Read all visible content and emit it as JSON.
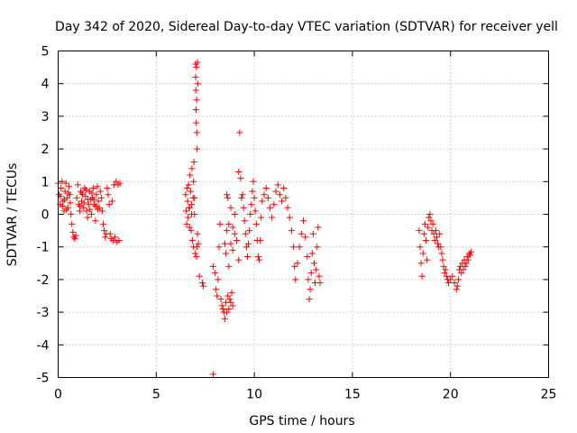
{
  "chart_data": {
    "type": "scatter",
    "title": "Day 342 of 2020, Sidereal Day-to-day VTEC variation (SDTVAR) for receiver yell",
    "xlabel": "GPS time / hours",
    "ylabel": "SDTVAR / TECUs",
    "xlim": [
      0,
      25
    ],
    "ylim": [
      -5,
      5
    ],
    "x_ticks": [
      0,
      5,
      10,
      15,
      20,
      25
    ],
    "x_tick_labels": [
      "0",
      "5",
      "10",
      "15",
      "20",
      "25"
    ],
    "y_ticks": [
      -5,
      -4,
      -3,
      -2,
      -1,
      0,
      1,
      2,
      3,
      4,
      5
    ],
    "y_tick_labels": [
      "-5",
      "-4",
      "-3",
      "-2",
      "-1",
      "0",
      "1",
      "2",
      "3",
      "4",
      "5"
    ],
    "grid": true,
    "marker": "+",
    "marker_color": "#ff0000",
    "series": [
      {
        "name": "SDTVAR",
        "points": [
          [
            0.0,
            0.95
          ],
          [
            0.05,
            0.6
          ],
          [
            0.1,
            0.3
          ],
          [
            0.15,
            0.8
          ],
          [
            0.2,
            1.0
          ],
          [
            0.25,
            0.4
          ],
          [
            0.3,
            0.1
          ],
          [
            0.35,
            0.7
          ],
          [
            0.4,
            0.95
          ],
          [
            0.45,
            0.5
          ],
          [
            0.5,
            0.2
          ],
          [
            0.55,
            0.85
          ],
          [
            0.6,
            0.6
          ],
          [
            0.65,
            0.0
          ],
          [
            0.7,
            -0.3
          ],
          [
            0.75,
            -0.55
          ],
          [
            0.8,
            -0.7
          ],
          [
            0.85,
            -0.75
          ],
          [
            0.9,
            -0.65
          ],
          [
            0.95,
            0.5
          ],
          [
            1.0,
            0.9
          ],
          [
            1.05,
            0.3
          ],
          [
            1.1,
            0.1
          ],
          [
            1.15,
            0.7
          ],
          [
            1.2,
            0.4
          ],
          [
            1.25,
            0.6
          ],
          [
            1.3,
            0.2
          ],
          [
            1.35,
            0.8
          ],
          [
            1.4,
            0.55
          ],
          [
            1.45,
            0.1
          ],
          [
            1.5,
            -0.1
          ],
          [
            1.55,
            0.3
          ],
          [
            1.6,
            0.7
          ],
          [
            1.65,
            0.45
          ],
          [
            1.7,
            0.0
          ],
          [
            1.75,
            0.5
          ],
          [
            1.8,
            0.8
          ],
          [
            1.85,
            0.3
          ],
          [
            1.9,
            -0.2
          ],
          [
            1.95,
            0.6
          ],
          [
            2.0,
            0.85
          ],
          [
            2.05,
            0.4
          ],
          [
            2.1,
            0.2
          ],
          [
            2.15,
            0.7
          ],
          [
            2.2,
            0.5
          ],
          [
            2.25,
            0.1
          ],
          [
            2.3,
            -0.3
          ],
          [
            2.35,
            -0.5
          ],
          [
            2.4,
            -0.7
          ],
          [
            2.45,
            -0.6
          ],
          [
            2.5,
            0.8
          ],
          [
            2.55,
            0.6
          ],
          [
            2.6,
            0.3
          ],
          [
            2.65,
            -0.6
          ],
          [
            2.7,
            -0.75
          ],
          [
            2.75,
            0.4
          ],
          [
            2.8,
            -0.8
          ],
          [
            2.85,
            0.9
          ],
          [
            2.9,
            -0.7
          ],
          [
            2.95,
            1.0
          ],
          [
            3.0,
            -0.85
          ],
          [
            3.05,
            0.9
          ],
          [
            3.1,
            -0.8
          ],
          [
            3.15,
            0.95
          ],
          [
            0.12,
            0.55
          ],
          [
            0.22,
            0.25
          ],
          [
            0.32,
            0.45
          ],
          [
            0.42,
            0.15
          ],
          [
            0.52,
            0.65
          ],
          [
            0.62,
            0.35
          ],
          [
            1.12,
            0.25
          ],
          [
            1.22,
            0.65
          ],
          [
            1.32,
            0.35
          ],
          [
            1.42,
            0.75
          ],
          [
            1.52,
            0.45
          ],
          [
            1.62,
            0.15
          ],
          [
            1.72,
            0.65
          ],
          [
            1.82,
            0.45
          ],
          [
            1.92,
            0.25
          ],
          [
            2.02,
            0.15
          ],
          [
            6.5,
            0.6
          ],
          [
            6.52,
            0.1
          ],
          [
            6.55,
            -0.3
          ],
          [
            6.58,
            0.8
          ],
          [
            6.6,
            0.4
          ],
          [
            6.62,
            -0.1
          ],
          [
            6.65,
            0.9
          ],
          [
            6.68,
            0.2
          ],
          [
            6.7,
            -0.4
          ],
          [
            6.72,
            1.2
          ],
          [
            6.75,
            0.7
          ],
          [
            6.78,
            -0.5
          ],
          [
            6.8,
            0.3
          ],
          [
            6.82,
            1.4
          ],
          [
            6.85,
            -0.8
          ],
          [
            6.88,
            0.5
          ],
          [
            6.9,
            -1.0
          ],
          [
            6.92,
            1.6
          ],
          [
            6.95,
            0.0
          ],
          [
            6.98,
            -1.2
          ],
          [
            7.0,
            4.6
          ],
          [
            7.01,
            4.2
          ],
          [
            7.02,
            3.8
          ],
          [
            7.03,
            3.2
          ],
          [
            7.04,
            2.8
          ],
          [
            7.05,
            4.5
          ],
          [
            7.06,
            3.5
          ],
          [
            7.07,
            2.5
          ],
          [
            7.08,
            2.0
          ],
          [
            7.1,
            4.65
          ],
          [
            7.12,
            4.0
          ],
          [
            7.05,
            -1.3
          ],
          [
            7.08,
            -1.0
          ],
          [
            7.1,
            -0.6
          ],
          [
            7.15,
            -0.9
          ],
          [
            7.2,
            -1.9
          ],
          [
            6.9,
            1.0
          ],
          [
            6.95,
            0.5
          ],
          [
            6.7,
            0.2
          ],
          [
            6.8,
            0.0
          ],
          [
            7.35,
            -2.1
          ],
          [
            7.4,
            -2.2
          ],
          [
            7.9,
            -4.9
          ],
          [
            7.9,
            -1.6
          ],
          [
            8.0,
            -1.8
          ],
          [
            8.05,
            -2.3
          ],
          [
            8.1,
            -2.5
          ],
          [
            8.15,
            -2.0
          ],
          [
            8.2,
            -1.0
          ],
          [
            8.25,
            -0.3
          ],
          [
            8.3,
            -2.6
          ],
          [
            8.35,
            -2.8
          ],
          [
            8.4,
            -2.9
          ],
          [
            8.45,
            -3.0
          ],
          [
            8.5,
            -3.2
          ],
          [
            8.55,
            -2.7
          ],
          [
            8.6,
            -3.0
          ],
          [
            8.65,
            -2.5
          ],
          [
            8.7,
            -2.9
          ],
          [
            8.75,
            -2.6
          ],
          [
            8.8,
            -2.7
          ],
          [
            8.85,
            -2.4
          ],
          [
            8.9,
            -2.8
          ],
          [
            8.5,
            -0.9
          ],
          [
            8.55,
            -1.2
          ],
          [
            8.6,
            -0.5
          ],
          [
            8.7,
            -1.6
          ],
          [
            8.8,
            -0.9
          ],
          [
            8.9,
            -1.1
          ],
          [
            9.0,
            -0.6
          ],
          [
            8.6,
            0.6
          ],
          [
            8.65,
            0.5
          ],
          [
            8.7,
            -0.3
          ],
          [
            8.8,
            0.2
          ],
          [
            8.9,
            -0.4
          ],
          [
            9.0,
            0.0
          ],
          [
            9.1,
            -0.8
          ],
          [
            9.2,
            -1.4
          ],
          [
            9.25,
            2.5
          ],
          [
            9.2,
            1.3
          ],
          [
            9.3,
            1.1
          ],
          [
            9.35,
            0.5
          ],
          [
            9.4,
            0.6
          ],
          [
            9.45,
            0.2
          ],
          [
            9.5,
            -0.2
          ],
          [
            9.55,
            -0.6
          ],
          [
            9.6,
            -1.0
          ],
          [
            9.65,
            -1.3
          ],
          [
            9.7,
            -0.9
          ],
          [
            9.75,
            -0.5
          ],
          [
            9.8,
            0.0
          ],
          [
            9.85,
            0.3
          ],
          [
            9.9,
            0.7
          ],
          [
            9.95,
            1.0
          ],
          [
            10.0,
            0.5
          ],
          [
            10.05,
            0.1
          ],
          [
            10.1,
            -0.3
          ],
          [
            10.15,
            -0.8
          ],
          [
            10.2,
            -1.3
          ],
          [
            10.25,
            -1.4
          ],
          [
            10.3,
            -0.8
          ],
          [
            10.35,
            -0.1
          ],
          [
            10.4,
            0.4
          ],
          [
            10.5,
            0.6
          ],
          [
            10.6,
            0.8
          ],
          [
            10.7,
            0.5
          ],
          [
            10.8,
            0.2
          ],
          [
            10.9,
            -0.1
          ],
          [
            11.0,
            0.3
          ],
          [
            11.1,
            0.7
          ],
          [
            11.2,
            0.9
          ],
          [
            11.3,
            0.6
          ],
          [
            11.4,
            0.4
          ],
          [
            11.5,
            0.8
          ],
          [
            11.6,
            0.5
          ],
          [
            11.7,
            0.2
          ],
          [
            11.8,
            -0.1
          ],
          [
            11.9,
            -0.5
          ],
          [
            12.0,
            -1.0
          ],
          [
            12.05,
            -1.6
          ],
          [
            12.1,
            -2.0
          ],
          [
            12.2,
            -1.5
          ],
          [
            12.3,
            -1.0
          ],
          [
            12.4,
            -0.6
          ],
          [
            12.5,
            -0.2
          ],
          [
            12.6,
            -0.7
          ],
          [
            12.7,
            -1.3
          ],
          [
            12.75,
            -2.0
          ],
          [
            12.8,
            -2.6
          ],
          [
            12.85,
            -2.3
          ],
          [
            12.9,
            -1.8
          ],
          [
            12.95,
            -1.2
          ],
          [
            13.0,
            -0.6
          ],
          [
            13.05,
            -1.5
          ],
          [
            13.1,
            -2.1
          ],
          [
            13.15,
            -1.7
          ],
          [
            13.2,
            -1.0
          ],
          [
            13.25,
            -0.4
          ],
          [
            13.3,
            -1.9
          ],
          [
            13.35,
            -2.1
          ],
          [
            18.4,
            -0.5
          ],
          [
            18.45,
            -1.0
          ],
          [
            18.5,
            -1.5
          ],
          [
            18.55,
            -1.9
          ],
          [
            18.6,
            -1.2
          ],
          [
            18.65,
            -0.6
          ],
          [
            18.7,
            -0.3
          ],
          [
            18.75,
            -0.8
          ],
          [
            18.8,
            -1.4
          ],
          [
            18.85,
            -0.4
          ],
          [
            18.9,
            -0.1
          ],
          [
            18.95,
            0.0
          ],
          [
            19.0,
            -0.2
          ],
          [
            19.05,
            -0.5
          ],
          [
            19.1,
            -0.3
          ],
          [
            19.15,
            -0.6
          ],
          [
            19.2,
            -0.8
          ],
          [
            19.25,
            -0.5
          ],
          [
            19.3,
            -0.7
          ],
          [
            19.35,
            -0.9
          ],
          [
            19.4,
            -1.0
          ],
          [
            19.45,
            -0.6
          ],
          [
            19.5,
            -1.0
          ],
          [
            19.55,
            -1.2
          ],
          [
            19.6,
            -1.4
          ],
          [
            19.65,
            -1.6
          ],
          [
            19.7,
            -1.8
          ],
          [
            19.75,
            -1.7
          ],
          [
            19.8,
            -1.9
          ],
          [
            19.85,
            -2.0
          ],
          [
            19.9,
            -2.1
          ],
          [
            20.0,
            -2.0
          ],
          [
            20.1,
            -1.9
          ],
          [
            20.2,
            -2.1
          ],
          [
            20.3,
            -2.3
          ],
          [
            20.35,
            -2.2
          ],
          [
            20.4,
            -2.0
          ],
          [
            20.45,
            -1.7
          ],
          [
            20.5,
            -1.6
          ],
          [
            20.55,
            -1.8
          ],
          [
            20.6,
            -1.5
          ],
          [
            20.65,
            -1.7
          ],
          [
            20.7,
            -1.4
          ],
          [
            20.75,
            -1.6
          ],
          [
            20.8,
            -1.5
          ],
          [
            20.85,
            -1.3
          ],
          [
            20.9,
            -1.4
          ],
          [
            20.95,
            -1.2
          ],
          [
            21.0,
            -1.25
          ],
          [
            21.05,
            -1.15
          ]
        ]
      }
    ]
  }
}
